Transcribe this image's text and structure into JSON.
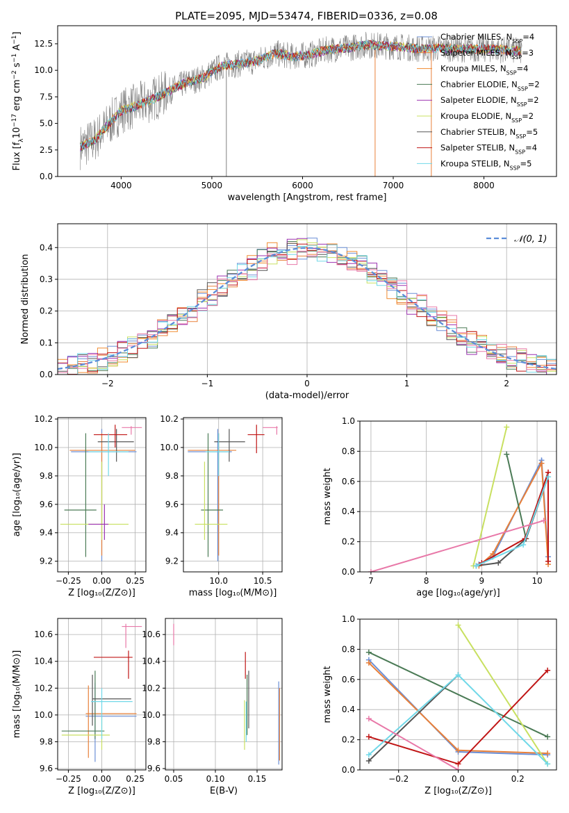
{
  "title": "PLATE=2095, MJD=53474, FIBERID=0336, z=0.08",
  "colors": {
    "Chabrier MILES": "#6b8fd6",
    "Salpeter MILES": "#e8803a",
    "Kroupa MILES": "#f08a2e",
    "Chabrier ELODIE": "#4a7a55",
    "Salpeter ELODIE": "#9b30b0",
    "Kroupa ELODIE": "#c8e060",
    "Chabrier STELIB": "#555555",
    "Salpeter STELIB": "#c01515",
    "Kroupa STELIB": "#70d8e8",
    "pink": "#e878a8",
    "data": "#808080",
    "normal": "#5b8dd9"
  },
  "chart_data": [
    {
      "type": "line",
      "panel": "spectrum",
      "title": "PLATE=2095, MJD=53474, FIBERID=0336, z=0.08",
      "xlabel": "wavelength [Angstrom, rest frame]",
      "ylabel_parts": [
        "Flux [f",
        "λ",
        "10",
        "−17",
        " erg cm",
        "−2",
        " s",
        "−1",
        " A",
        "−1",
        "]"
      ],
      "xlim": [
        3300,
        8800
      ],
      "ylim": [
        0,
        14.2
      ],
      "xticks": [
        4000,
        5000,
        6000,
        7000,
        8000
      ],
      "yticks": [
        0.0,
        2.5,
        5.0,
        7.5,
        10.0,
        12.5
      ],
      "continuum_x": [
        3550,
        3700,
        3850,
        4000,
        4150,
        4300,
        4500,
        4700,
        4900,
        5100,
        5300,
        5500,
        5700,
        5900,
        6100,
        6300,
        6500,
        6700,
        6900,
        7100,
        7300,
        7500,
        7800,
        8100,
        8400
      ],
      "continuum_y": [
        2.8,
        3.4,
        4.8,
        6.2,
        6.6,
        7.1,
        7.9,
        8.8,
        9.3,
        10.4,
        10.6,
        10.9,
        11.6,
        11.3,
        11.5,
        12.0,
        12.1,
        12.4,
        12.3,
        12.2,
        12.0,
        12.1,
        12.0,
        12.0,
        11.8
      ],
      "legend": [
        {
          "base": "Chabrier MILES, N",
          "sub": "SSP",
          "val": "=4"
        },
        {
          "base": "Salpeter MILES, N",
          "sub": "SSP",
          "val": "=3"
        },
        {
          "base": "Kroupa MILES, N",
          "sub": "SSP",
          "val": "=4"
        },
        {
          "base": "Chabrier ELODIE, N",
          "sub": "SSP",
          "val": "=2"
        },
        {
          "base": "Salpeter ELODIE, N",
          "sub": "SSP",
          "val": "=2"
        },
        {
          "base": "Kroupa ELODIE, N",
          "sub": "SSP",
          "val": "=2"
        },
        {
          "base": "Chabrier STELIB, N",
          "sub": "SSP",
          "val": "=5"
        },
        {
          "base": "Salpeter STELIB, N",
          "sub": "SSP",
          "val": "=4"
        },
        {
          "base": "Kroupa STELIB, N",
          "sub": "SSP",
          "val": "=5"
        }
      ]
    },
    {
      "type": "line",
      "panel": "residual-histogram",
      "xlabel": "(data-model)/error",
      "ylabel": "Normed distribution",
      "xlim": [
        -2.5,
        2.5
      ],
      "ylim": [
        0,
        0.475
      ],
      "xticks": [
        -2,
        -1,
        0,
        1,
        2
      ],
      "yticks": [
        0.0,
        0.1,
        0.2,
        0.3,
        0.4
      ],
      "bin_width": 0.1,
      "legend": "𝒩(0, 1)",
      "series_means": [
        {
          "name": "Chabrier MILES",
          "mu": 0.0,
          "sigma": 1.0
        },
        {
          "name": "Salpeter MILES",
          "mu": 0.03,
          "sigma": 1.01
        },
        {
          "name": "Kroupa MILES",
          "mu": -0.02,
          "sigma": 0.99
        },
        {
          "name": "Chabrier ELODIE",
          "mu": 0.02,
          "sigma": 0.98
        },
        {
          "name": "Salpeter ELODIE",
          "mu": -0.03,
          "sigma": 1.0
        },
        {
          "name": "Kroupa ELODIE",
          "mu": 0.01,
          "sigma": 1.02
        },
        {
          "name": "Chabrier STELIB",
          "mu": -0.01,
          "sigma": 1.0
        },
        {
          "name": "Salpeter STELIB",
          "mu": 0.02,
          "sigma": 0.99
        },
        {
          "name": "Kroupa STELIB",
          "mu": 0.0,
          "sigma": 1.01
        },
        {
          "name": "pink",
          "mu": 0.04,
          "sigma": 1.03
        }
      ]
    },
    {
      "type": "scatter",
      "panel": "age-vs-Z",
      "xlabel": "Z [log₁₀(Z/Z⊙)]",
      "ylabel": "age  [log₁₀(age/yr)]",
      "xlim": [
        -0.33,
        0.33
      ],
      "ylim": [
        9.125,
        10.21
      ],
      "xticks": [
        "−0.25",
        "0.00",
        "0.25"
      ],
      "xtick_values": [
        -0.25,
        0.0,
        0.25
      ],
      "yticks": [
        9.2,
        9.4,
        9.6,
        9.8,
        10.0,
        10.2
      ],
      "errorbars": [
        {
          "color": "#6b8fd6",
          "x": [
            -0.23,
            0.26
          ],
          "xc": 0.0,
          "y": [
            9.2,
            10.13
          ],
          "yc": 9.97
        },
        {
          "color": "#e8803a",
          "x": [
            -0.24,
            0.25
          ],
          "xc": 0.0,
          "y": [
            9.24,
            10.1
          ],
          "yc": 9.98
        },
        {
          "color": "#4a7a55",
          "x": [
            -0.28,
            -0.04
          ],
          "xc": -0.12,
          "y": [
            9.23,
            10.1
          ],
          "yc": 9.56
        },
        {
          "color": "#555555",
          "x": [
            -0.03,
            0.24
          ],
          "xc": 0.11,
          "y": [
            9.9,
            10.13
          ],
          "yc": 10.04
        },
        {
          "color": "#c01515",
          "x": [
            -0.06,
            0.19
          ],
          "xc": 0.1,
          "y": [
            10.0,
            10.16
          ],
          "yc": 10.09
        },
        {
          "color": "#c8e060",
          "x": [
            -0.31,
            0.2
          ],
          "xc": 0.0,
          "y": [
            9.35,
            9.9
          ],
          "yc": 9.46
        },
        {
          "color": "#70d8e8",
          "x": [
            -0.1,
            0.2
          ],
          "xc": 0.05,
          "y": [
            9.8,
            10.1
          ],
          "yc": 9.97
        },
        {
          "color": "#e878a8",
          "x": [
            0.15,
            0.3
          ],
          "xc": 0.22,
          "y": [
            10.09,
            10.15
          ],
          "yc": 10.14
        },
        {
          "color": "#9b30b0",
          "x": [
            -0.1,
            0.05
          ],
          "xc": 0.02,
          "y": [
            9.35,
            9.6
          ],
          "yc": 9.46
        }
      ]
    },
    {
      "type": "scatter",
      "panel": "age-vs-mass",
      "xlabel": "mass [log₁₀(M/M⊙)]",
      "xlim": [
        9.6,
        10.72
      ],
      "ylim": [
        9.125,
        10.21
      ],
      "xticks": [
        "10.0",
        "10.5"
      ],
      "xtick_values": [
        10.0,
        10.5
      ],
      "yticks": [
        9.2,
        9.4,
        9.6,
        9.8,
        10.0,
        10.2
      ],
      "errorbars": [
        {
          "color": "#6b8fd6",
          "x": [
            9.65,
            10.15
          ],
          "xc": 9.99,
          "y": [
            9.2,
            10.13
          ],
          "yc": 9.97
        },
        {
          "color": "#e8803a",
          "x": [
            9.65,
            10.2
          ],
          "xc": 10.0,
          "y": [
            9.24,
            10.1
          ],
          "yc": 9.98
        },
        {
          "color": "#4a7a55",
          "x": [
            9.8,
            10.05
          ],
          "xc": 9.88,
          "y": [
            9.23,
            10.1
          ],
          "yc": 9.56
        },
        {
          "color": "#555555",
          "x": [
            9.95,
            10.3
          ],
          "xc": 10.12,
          "y": [
            9.9,
            10.13
          ],
          "yc": 10.04
        },
        {
          "color": "#c01515",
          "x": [
            10.33,
            10.52
          ],
          "xc": 10.43,
          "y": [
            9.96,
            10.16
          ],
          "yc": 10.09
        },
        {
          "color": "#c8e060",
          "x": [
            9.73,
            10.1
          ],
          "xc": 9.84,
          "y": [
            9.35,
            9.9
          ],
          "yc": 9.46
        },
        {
          "color": "#70d8e8",
          "x": [
            9.85,
            10.12
          ],
          "xc": 10.0,
          "y": [
            9.8,
            10.1
          ],
          "yc": 9.97
        },
        {
          "color": "#e878a8",
          "x": [
            10.5,
            10.67
          ],
          "xc": 10.66,
          "y": [
            10.09,
            10.15
          ],
          "yc": 10.14
        }
      ]
    },
    {
      "type": "line",
      "panel": "massweight-vs-age",
      "xlabel": "age  [log₁₀(age/yr)]",
      "ylabel": "mass weight",
      "xlim": [
        6.8,
        10.35
      ],
      "ylim": [
        0,
        1.0
      ],
      "xticks": [
        7,
        8,
        9,
        10
      ],
      "yticks": [
        "0.0",
        "0.2",
        "0.4",
        "0.6",
        "0.8",
        "1.0"
      ],
      "ytick_values": [
        0.0,
        0.2,
        0.4,
        0.6,
        0.8,
        1.0
      ],
      "series": [
        {
          "name": "Chabrier MILES",
          "x": [
            8.95,
            9.2,
            10.08,
            10.2
          ],
          "y": [
            0.05,
            0.1,
            0.74,
            0.1
          ]
        },
        {
          "name": "Salpeter MILES",
          "x": [
            8.95,
            9.2,
            10.08,
            10.2
          ],
          "y": [
            0.04,
            0.12,
            0.72,
            0.05
          ]
        },
        {
          "name": "Chabrier ELODIE",
          "x": [
            9.45,
            9.8
          ],
          "y": [
            0.78,
            0.22
          ]
        },
        {
          "name": "Kroupa ELODIE",
          "x": [
            8.85,
            9.45
          ],
          "y": [
            0.04,
            0.96
          ]
        },
        {
          "name": "Chabrier STELIB",
          "x": [
            8.9,
            9.3,
            9.8,
            10.2
          ],
          "y": [
            0.04,
            0.06,
            0.22,
            0.63
          ]
        },
        {
          "name": "Salpeter STELIB",
          "x": [
            9.0,
            9.78,
            10.2,
            10.2
          ],
          "y": [
            0.06,
            0.22,
            0.66,
            0.07
          ]
        },
        {
          "name": "Kroupa STELIB",
          "x": [
            8.9,
            9.75,
            10.2
          ],
          "y": [
            0.04,
            0.18,
            0.63
          ]
        },
        {
          "name": "pink",
          "x": [
            7.0,
            10.12
          ],
          "y": [
            0.0,
            0.34
          ]
        }
      ]
    },
    {
      "type": "scatter",
      "panel": "mass-vs-Z",
      "xlabel": "Z [log₁₀(Z/Z⊙)]",
      "ylabel": "mass [log₁₀(M/M⊙)]",
      "xlim": [
        -0.33,
        0.33
      ],
      "ylim": [
        9.59,
        10.72
      ],
      "xticks": [
        "−0.25",
        "0.00",
        "0.25"
      ],
      "xtick_values": [
        -0.25,
        0.0,
        0.25
      ],
      "yticks": [
        "9.6",
        "9.8",
        "10.0",
        "10.2",
        "10.4",
        "10.6"
      ],
      "ytick_values": [
        9.6,
        9.8,
        10.0,
        10.2,
        10.4,
        10.6
      ],
      "errorbars": [
        {
          "color": "#6b8fd6",
          "x": [
            -0.12,
            0.26
          ],
          "xc": -0.05,
          "y": [
            9.65,
            10.24
          ],
          "yc": 9.99
        },
        {
          "color": "#e8803a",
          "x": [
            -0.12,
            0.26
          ],
          "xc": -0.1,
          "y": [
            9.68,
            10.22
          ],
          "yc": 10.01
        },
        {
          "color": "#4a7a55",
          "x": [
            -0.3,
            0.02
          ],
          "xc": -0.05,
          "y": [
            9.82,
            10.33
          ],
          "yc": 9.88
        },
        {
          "color": "#555555",
          "x": [
            -0.07,
            0.22
          ],
          "xc": -0.07,
          "y": [
            9.92,
            10.3
          ],
          "yc": 10.12
        },
        {
          "color": "#c01515",
          "x": [
            -0.06,
            0.23
          ],
          "xc": 0.2,
          "y": [
            10.27,
            10.48
          ],
          "yc": 10.43
        },
        {
          "color": "#c8e060",
          "x": [
            -0.3,
            0.06
          ],
          "xc": 0.0,
          "y": [
            9.74,
            9.99
          ],
          "yc": 9.85
        },
        {
          "color": "#70d8e8",
          "x": [
            -0.08,
            0.23
          ],
          "xc": 0.0,
          "y": [
            9.82,
            10.2
          ],
          "yc": 10.1
        },
        {
          "color": "#e878a8",
          "x": [
            0.15,
            0.3
          ],
          "xc": 0.18,
          "y": [
            10.5,
            10.68
          ],
          "yc": 10.66
        }
      ]
    },
    {
      "type": "scatter",
      "panel": "mass-vs-EBV",
      "xlabel": "E(B-V)",
      "xlim": [
        0.04,
        0.18
      ],
      "ylim": [
        9.59,
        10.72
      ],
      "xticks": [
        "0.05",
        "0.10",
        "0.15"
      ],
      "xtick_values": [
        0.05,
        0.1,
        0.15
      ],
      "yticks": [
        "9.6",
        "9.8",
        "10.0",
        "10.2",
        "10.4",
        "10.6"
      ],
      "ytick_values": [
        9.6,
        9.8,
        10.0,
        10.2,
        10.4,
        10.6
      ],
      "errorbars": [
        {
          "color": "#6b8fd6",
          "xc": 0.176,
          "y": [
            9.63,
            10.25
          ]
        },
        {
          "color": "#e8803a",
          "xc": 0.177,
          "y": [
            9.66,
            10.2
          ]
        },
        {
          "color": "#c01515",
          "xc": 0.136,
          "y": [
            10.27,
            10.47
          ]
        },
        {
          "color": "#555555",
          "xc": 0.14,
          "y": [
            9.9,
            10.33
          ]
        },
        {
          "color": "#4a7a55",
          "xc": 0.138,
          "y": [
            9.85,
            10.3
          ]
        },
        {
          "color": "#c8e060",
          "xc": 0.135,
          "y": [
            9.74,
            10.11
          ]
        },
        {
          "color": "#70d8e8",
          "xc": 0.137,
          "y": [
            9.8,
            10.1
          ]
        },
        {
          "color": "#e878a8",
          "xc": 0.05,
          "y": [
            10.52,
            10.68
          ]
        }
      ]
    },
    {
      "type": "line",
      "panel": "massweight-vs-Z",
      "xlabel": "Z [log₁₀(Z/Z⊙)]",
      "ylabel": "mass weight",
      "xlim": [
        -0.33,
        0.33
      ],
      "ylim": [
        0,
        1.0
      ],
      "xticks": [
        "−0.2",
        "0.0",
        "0.2"
      ],
      "xtick_values": [
        -0.2,
        0.0,
        0.2
      ],
      "yticks": [
        "0.0",
        "0.2",
        "0.4",
        "0.6",
        "0.8",
        "1.0"
      ],
      "ytick_values": [
        0.0,
        0.2,
        0.4,
        0.6,
        0.8,
        1.0
      ],
      "series": [
        {
          "name": "Chabrier MILES",
          "x": [
            -0.3,
            0.0,
            0.3
          ],
          "y": [
            0.73,
            0.12,
            0.1
          ]
        },
        {
          "name": "Salpeter MILES",
          "x": [
            -0.3,
            0.0,
            0.3
          ],
          "y": [
            0.71,
            0.13,
            0.11
          ]
        },
        {
          "name": "Chabrier ELODIE",
          "x": [
            -0.3,
            0.3
          ],
          "y": [
            0.78,
            0.22
          ]
        },
        {
          "name": "Kroupa ELODIE",
          "x": [
            0.0,
            0.3
          ],
          "y": [
            0.96,
            0.04
          ]
        },
        {
          "name": "Chabrier STELIB",
          "x": [
            -0.3,
            0.0
          ],
          "y": [
            0.06,
            0.63
          ]
        },
        {
          "name": "Salpeter STELIB",
          "x": [
            -0.3,
            0.0,
            0.3
          ],
          "y": [
            0.22,
            0.04,
            0.66
          ]
        },
        {
          "name": "Kroupa STELIB",
          "x": [
            -0.3,
            0.0,
            0.3
          ],
          "y": [
            0.1,
            0.63,
            0.04
          ]
        },
        {
          "name": "pink",
          "x": [
            -0.3,
            0.0
          ],
          "y": [
            0.34,
            0.0
          ]
        }
      ]
    }
  ]
}
